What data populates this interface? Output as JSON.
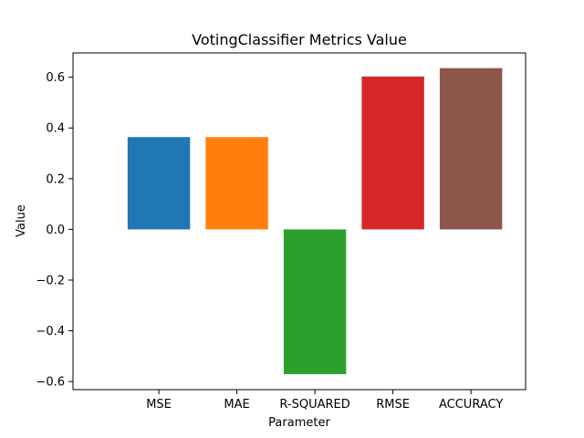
{
  "chart_data": {
    "type": "bar",
    "title": "VotingClassifier Metrics Value",
    "xlabel": "Parameter",
    "ylabel": "Value",
    "categories": [
      "MSE",
      "MAE",
      "R-SQUARED",
      "RMSE",
      "ACCURACY"
    ],
    "values": [
      0.364,
      0.364,
      -0.571,
      0.603,
      0.636
    ],
    "colors": [
      "#1f77b4",
      "#ff7f0e",
      "#2ca02c",
      "#d62728",
      "#8c564b"
    ],
    "ylim": [
      -0.632,
      0.696
    ],
    "yticks": [
      -0.6,
      -0.4,
      -0.2,
      0.0,
      0.2,
      0.4,
      0.6
    ],
    "ytick_labels": [
      "−0.6",
      "−0.4",
      "−0.2",
      "0.0",
      "0.2",
      "0.4",
      "0.6"
    ],
    "grid": false,
    "legend": "none"
  }
}
